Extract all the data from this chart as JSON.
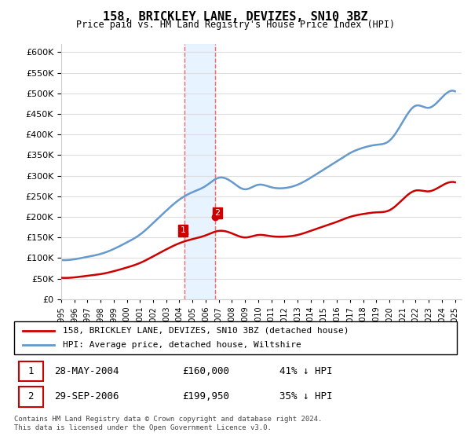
{
  "title": "158, BRICKLEY LANE, DEVIZES, SN10 3BZ",
  "subtitle": "Price paid vs. HM Land Registry's House Price Index (HPI)",
  "legend_line1": "158, BRICKLEY LANE, DEVIZES, SN10 3BZ (detached house)",
  "legend_line2": "HPI: Average price, detached house, Wiltshire",
  "transaction1_label": "1",
  "transaction1_date": "28-MAY-2004",
  "transaction1_price": "£160,000",
  "transaction1_hpi": "41% ↓ HPI",
  "transaction1_year": 2004.41,
  "transaction2_label": "2",
  "transaction2_date": "29-SEP-2006",
  "transaction2_price": "£199,950",
  "transaction2_hpi": "35% ↓ HPI",
  "transaction2_year": 2006.75,
  "footer": "Contains HM Land Registry data © Crown copyright and database right 2024.\nThis data is licensed under the Open Government Licence v3.0.",
  "hpi_color": "#6699cc",
  "price_color": "#cc0000",
  "marker_color": "#cc0000",
  "shade_color": "#ddeeff",
  "vline_color": "#ff6666",
  "ylim_min": 0,
  "ylim_max": 620000,
  "xmin": 1995,
  "xmax": 2025.5
}
